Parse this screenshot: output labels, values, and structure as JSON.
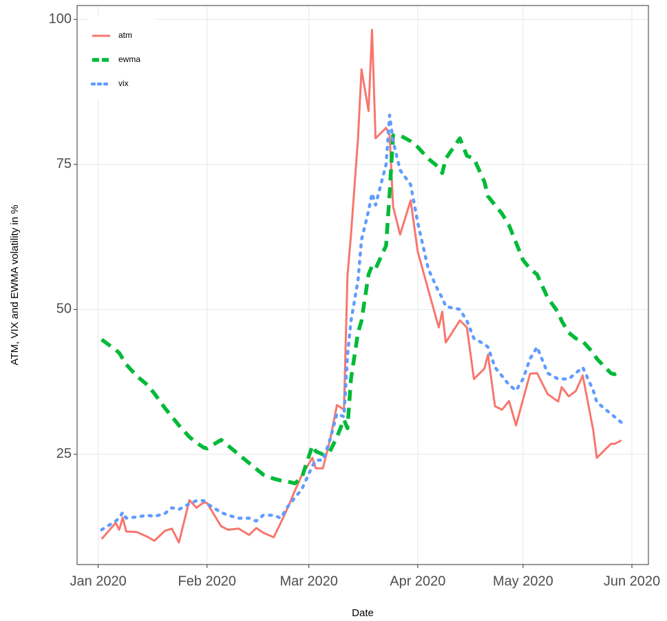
{
  "chart_data": {
    "type": "line",
    "x_label": "Date",
    "y_label": "ATM, VIX and EWMA volatility in %",
    "x": [
      1,
      5,
      6,
      7,
      8,
      11,
      14,
      16,
      19,
      21,
      23,
      26,
      28,
      30,
      31,
      35,
      37,
      40,
      43,
      45,
      47,
      50,
      52,
      54,
      56,
      58,
      61,
      62,
      64,
      66,
      68,
      70,
      71,
      72,
      74,
      75,
      77,
      78,
      79,
      82,
      83,
      84,
      86,
      89,
      91,
      94,
      97,
      98,
      99,
      103,
      105,
      107,
      110,
      111,
      113,
      115,
      117,
      119,
      121,
      123,
      125,
      128,
      131,
      132,
      134,
      136,
      138,
      141,
      142,
      146,
      147,
      149
    ],
    "series": [
      {
        "name": "atm",
        "color": "#f8766d",
        "linetype": "solid",
        "values": [
          10.4,
          13.2,
          12.0,
          14.1,
          11.7,
          11.6,
          10.8,
          10.1,
          11.8,
          12.2,
          9.8,
          17.1,
          15.8,
          16.7,
          16.6,
          12.6,
          12.0,
          12.2,
          11.1,
          12.3,
          11.5,
          10.7,
          13.2,
          15.8,
          18.7,
          21.4,
          24.4,
          22.6,
          22.6,
          27.4,
          33.5,
          32.7,
          55.8,
          62.9,
          79.5,
          91.4,
          84.2,
          98.2,
          79.5,
          81.3,
          80.1,
          67.7,
          62.9,
          68.8,
          60.0,
          53.4,
          46.9,
          49.6,
          44.3,
          48.1,
          46.9,
          38.0,
          39.8,
          42.2,
          33.3,
          32.7,
          34.2,
          30.0,
          34.5,
          38.9,
          39.0,
          35.4,
          34.1,
          36.6,
          35.0,
          35.9,
          38.6,
          29.1,
          24.4,
          26.8,
          26.8,
          27.4
        ]
      },
      {
        "name": "ewma",
        "color": "#00ba38",
        "linetype": "dashed",
        "values": [
          44.8,
          43,
          42.5,
          41.5,
          40.5,
          38.5,
          37,
          35.5,
          33,
          31.5,
          30,
          28,
          27,
          26.2,
          26,
          27.5,
          26.5,
          25,
          23.5,
          22.5,
          21.5,
          20.8,
          20.5,
          20.3,
          20,
          21,
          26.5,
          25.5,
          25,
          25.5,
          28,
          31,
          29.5,
          38,
          46,
          48,
          56,
          57.5,
          57,
          61,
          70,
          80,
          80,
          79,
          78,
          76,
          74.5,
          73.5,
          76,
          79.5,
          76.5,
          76,
          72,
          69.5,
          68,
          66.5,
          64.5,
          61.5,
          58.5,
          57,
          56,
          52,
          49.5,
          48,
          46,
          45,
          44.5,
          42.5,
          41.5,
          39,
          38.8,
          39.5
        ]
      },
      {
        "name": "vix",
        "color": "#619cff",
        "linetype": "dotted",
        "values": [
          12.0,
          13.5,
          14,
          15,
          14,
          14.2,
          14.5,
          14.3,
          14.8,
          15.8,
          15.5,
          16.5,
          17,
          17,
          16.5,
          15,
          14.5,
          14,
          14,
          13.5,
          14.5,
          14.5,
          14,
          16,
          17.5,
          19,
          23,
          24,
          24,
          27.5,
          32,
          31.5,
          42,
          48,
          55,
          62,
          67,
          70,
          68,
          75,
          83.5,
          79,
          74,
          71.5,
          65,
          57,
          53,
          52,
          50.5,
          50,
          48,
          45,
          44,
          43.5,
          40,
          38.5,
          37,
          36,
          38,
          41.5,
          43.5,
          39,
          38,
          38,
          38,
          39,
          40,
          36,
          34,
          32,
          31.5,
          30.5
        ]
      }
    ],
    "xlim": [
      -6,
      156.7
    ],
    "xticks": [
      {
        "value": 0,
        "label": "Jan 2020"
      },
      {
        "value": 31,
        "label": "Feb 2020"
      },
      {
        "value": 60,
        "label": "Mar 2020"
      },
      {
        "value": 91,
        "label": "Apr 2020"
      },
      {
        "value": 121,
        "label": "May 2020"
      },
      {
        "value": 152,
        "label": "Jun 2020"
      }
    ],
    "ylim": [
      6,
      102.4
    ],
    "yticks": [
      25,
      50,
      75,
      100
    ],
    "grid": true,
    "legend": "top-left"
  }
}
